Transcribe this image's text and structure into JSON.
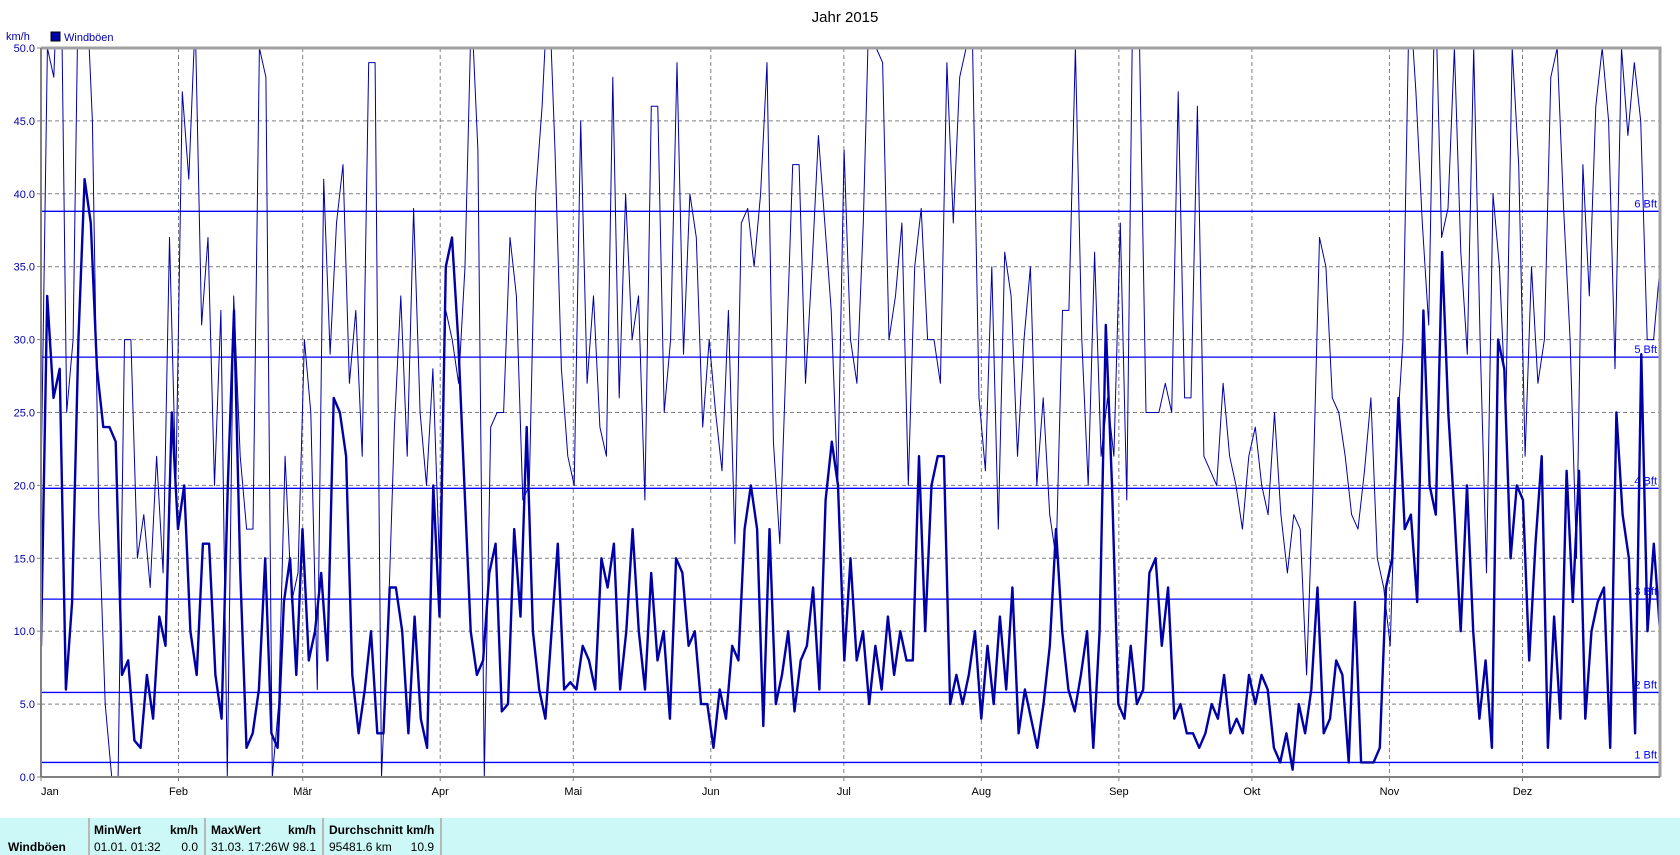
{
  "chart_data": {
    "type": "line",
    "title": "Jahr 2015",
    "ylabel": "km/h",
    "ylim": [
      0,
      50
    ],
    "yticks": [
      "0.0",
      "5.0",
      "10.0",
      "15.0",
      "20.0",
      "25.0",
      "30.0",
      "35.0",
      "40.0",
      "45.0",
      "50.0"
    ],
    "ytick_values": [
      0,
      5,
      10,
      15,
      20,
      25,
      30,
      35,
      40,
      45,
      50
    ],
    "xlim_days": [
      0,
      365
    ],
    "months": [
      "Jan",
      "Feb",
      "Mär",
      "Apr",
      "Mai",
      "Jun",
      "Jul",
      "Aug",
      "Sep",
      "Okt",
      "Nov",
      "Dez"
    ],
    "month_start_days": [
      0,
      31,
      59,
      90,
      120,
      151,
      181,
      212,
      243,
      273,
      304,
      334
    ],
    "grid": true,
    "legend": {
      "position": "top-left",
      "entries": [
        "Windböen"
      ]
    },
    "beaufort_lines": [
      {
        "label": "1 Bft",
        "value": 1.0
      },
      {
        "label": "2 Bft",
        "value": 5.8
      },
      {
        "label": "3 Bft",
        "value": 12.2
      },
      {
        "label": "4 Bft",
        "value": 19.8
      },
      {
        "label": "5 Bft",
        "value": 28.8
      },
      {
        "label": "6 Bft",
        "value": 38.8
      }
    ],
    "series": [
      {
        "name": "Windböen (Tagesmittel)",
        "width": 2.4,
        "values": [
          9,
          33,
          26,
          28,
          6,
          12,
          30,
          41,
          38,
          28,
          24,
          24,
          23,
          7,
          8,
          2.5,
          2,
          7,
          4,
          11,
          9,
          25,
          17,
          20,
          10,
          7,
          16,
          16,
          7,
          4,
          20,
          32,
          14,
          2,
          3,
          6,
          15,
          3,
          2,
          12,
          15,
          7,
          17,
          8,
          10,
          14,
          8,
          26,
          25,
          22,
          7,
          3,
          6,
          10,
          3,
          3,
          13,
          13,
          10,
          3,
          11,
          4,
          2,
          20,
          11,
          35,
          37,
          30,
          20,
          10,
          7,
          8,
          14,
          16,
          4.5,
          5,
          17,
          11,
          24,
          10,
          6,
          4,
          10,
          16,
          6,
          6.5,
          6,
          9,
          8,
          6,
          15,
          13,
          16,
          6,
          10,
          17,
          10,
          6,
          14,
          8,
          10,
          4,
          15,
          14,
          9,
          10,
          5,
          5,
          2,
          6,
          4,
          9,
          8,
          17,
          20,
          17,
          3.5,
          17,
          5,
          7,
          10,
          4.5,
          8,
          9,
          13,
          6,
          19,
          23,
          20,
          8,
          15,
          8,
          10,
          5,
          9,
          6,
          11,
          7,
          10,
          8,
          8,
          22,
          10,
          20,
          22,
          22,
          5,
          7,
          5,
          7,
          10,
          4,
          9,
          5,
          11,
          6,
          13,
          3,
          6,
          4,
          2,
          5,
          9,
          17,
          10,
          6,
          4.5,
          7,
          10,
          2,
          10,
          31,
          20,
          5,
          4,
          9,
          5,
          6,
          14,
          15,
          9,
          13,
          4,
          5,
          3,
          3,
          2,
          3,
          5,
          4,
          7,
          3,
          4,
          3,
          7,
          5,
          7,
          6,
          2,
          1,
          3,
          0.5,
          5,
          3,
          6,
          13,
          3,
          4,
          8,
          7,
          1,
          12,
          1,
          1,
          1,
          2,
          13,
          15,
          26,
          17,
          18,
          12,
          32,
          20,
          18,
          36,
          25,
          18,
          10,
          20,
          10,
          4,
          8,
          2,
          30,
          28,
          15,
          20,
          19,
          8,
          16,
          22,
          2,
          11,
          4,
          21,
          12,
          21,
          4,
          10,
          12,
          13,
          2,
          25,
          18,
          15,
          3,
          29,
          10,
          16,
          10
        ]
      },
      {
        "name": "Windböen (Max)",
        "width": 1,
        "values": [
          20,
          50,
          48,
          60,
          25,
          30,
          60,
          55,
          45,
          18,
          5,
          0,
          0,
          30,
          30,
          15,
          18,
          13,
          22,
          14,
          37,
          20,
          47,
          41,
          52,
          31,
          37,
          20,
          32,
          0,
          33,
          22,
          17,
          17,
          50,
          48,
          0,
          5,
          22,
          12,
          14,
          30,
          25,
          6,
          41,
          29,
          38,
          42,
          27,
          32,
          22,
          49,
          49,
          0,
          10,
          24,
          33,
          22,
          39,
          25,
          20,
          28,
          15,
          32,
          30,
          27,
          35,
          53,
          43,
          0,
          24,
          25,
          25,
          37,
          33,
          19,
          20,
          40,
          46,
          55,
          43,
          28,
          22,
          20,
          45,
          27,
          33,
          24,
          22,
          48,
          26,
          40,
          30,
          33,
          19,
          46,
          46,
          25,
          30,
          49,
          29,
          40,
          37,
          24,
          30,
          25,
          21,
          32,
          16,
          38,
          39,
          35,
          40,
          49,
          23,
          16,
          29,
          42,
          42,
          27,
          35,
          44,
          38,
          32,
          20,
          43,
          30,
          27,
          38,
          55,
          50,
          49,
          30,
          33,
          38,
          20,
          35,
          39,
          30,
          30,
          27,
          49,
          38,
          48,
          50,
          50,
          26,
          21,
          35,
          17,
          36,
          33,
          22,
          30,
          35,
          20,
          26,
          18,
          15,
          32,
          32,
          50,
          30,
          20,
          36,
          22,
          26,
          22,
          38,
          19,
          56,
          50,
          25,
          25,
          25,
          27,
          25,
          47,
          26,
          26,
          46,
          22,
          21,
          20,
          27,
          22,
          20,
          17,
          22,
          24,
          20,
          18,
          25,
          18,
          14,
          18,
          17,
          7,
          20,
          37,
          35,
          26,
          25,
          22,
          18,
          17,
          21,
          26,
          15,
          13,
          9,
          23,
          30,
          54,
          47,
          38,
          31,
          55,
          37,
          39,
          50,
          36,
          29,
          50,
          30,
          14,
          40,
          35,
          25,
          50,
          42,
          22,
          35,
          27,
          30,
          48,
          50,
          39,
          30,
          15,
          42,
          33,
          46,
          50,
          45,
          28,
          50,
          44,
          49,
          45,
          30,
          30,
          35
        ]
      }
    ]
  },
  "table": {
    "row_label": "Windböen",
    "min_header": "MinWert",
    "min_unit": "km/h",
    "min_time": "01.01.  01:32",
    "min_value": "0.0",
    "max_header": "MaxWert",
    "max_unit": "km/h",
    "max_time": "31.03.  17:26",
    "max_value": "W 98.1",
    "avg_header": "Durchschnitt km/h",
    "avg_distance": "95481.6 km",
    "avg_value": "10.9"
  },
  "colors": {
    "series": "#0000a8",
    "bft": "#0000ff",
    "grid": "#808080",
    "table_bg": "#ccf8f8"
  }
}
